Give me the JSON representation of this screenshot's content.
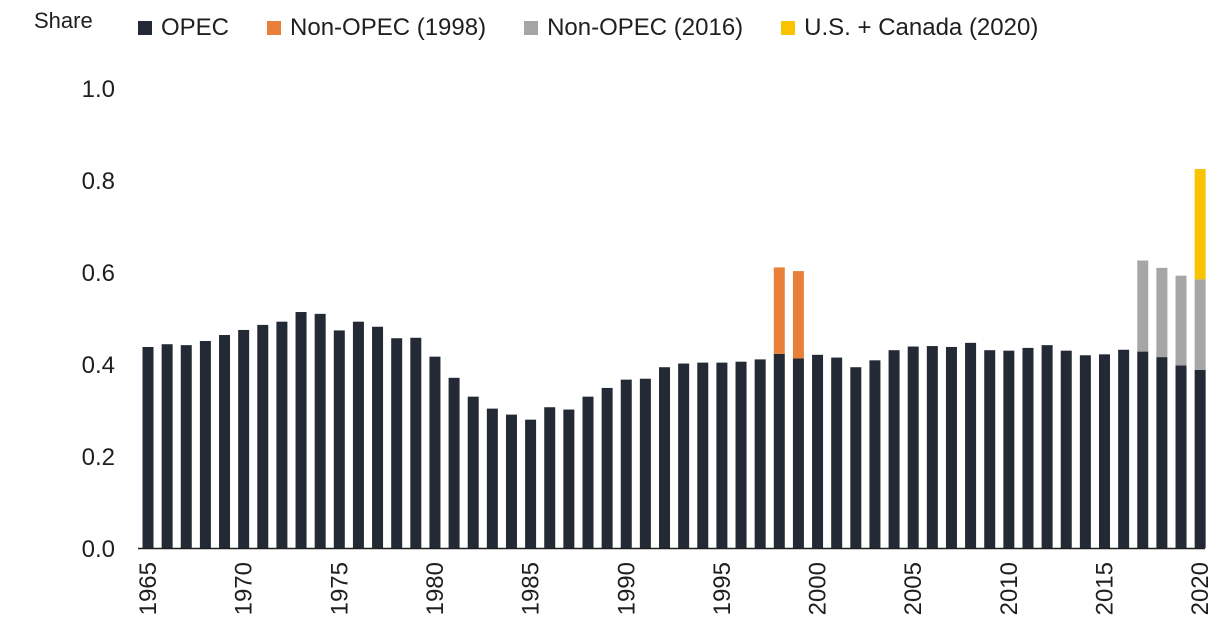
{
  "chart_data": {
    "type": "bar",
    "stacked": true,
    "ylabel": "Share",
    "ylim": [
      0,
      1.0
    ],
    "yticks": [
      "0.0",
      "0.2",
      "0.4",
      "0.6",
      "0.8",
      "1.0"
    ],
    "xticks": [
      "1965",
      "1970",
      "1975",
      "1980",
      "1985",
      "1990",
      "1995",
      "2000",
      "2005",
      "2010",
      "2015",
      "2020"
    ],
    "grid": false,
    "legend_position": "top",
    "categories": [
      1965,
      1966,
      1967,
      1968,
      1969,
      1970,
      1971,
      1972,
      1973,
      1974,
      1975,
      1976,
      1977,
      1978,
      1979,
      1980,
      1981,
      1982,
      1983,
      1984,
      1985,
      1986,
      1987,
      1988,
      1989,
      1990,
      1991,
      1992,
      1993,
      1994,
      1995,
      1996,
      1997,
      1998,
      1999,
      2000,
      2001,
      2002,
      2003,
      2004,
      2005,
      2006,
      2007,
      2008,
      2009,
      2010,
      2011,
      2012,
      2013,
      2014,
      2015,
      2016,
      2017,
      2018,
      2019,
      2020
    ],
    "series": [
      {
        "name": "OPEC",
        "color": "#232a35",
        "values": [
          0.437,
          0.443,
          0.441,
          0.45,
          0.463,
          0.474,
          0.485,
          0.492,
          0.513,
          0.509,
          0.473,
          0.492,
          0.481,
          0.456,
          0.457,
          0.416,
          0.37,
          0.329,
          0.303,
          0.29,
          0.279,
          0.306,
          0.301,
          0.329,
          0.348,
          0.366,
          0.368,
          0.393,
          0.401,
          0.403,
          0.403,
          0.405,
          0.41,
          0.422,
          0.412,
          0.42,
          0.414,
          0.393,
          0.408,
          0.43,
          0.438,
          0.439,
          0.437,
          0.446,
          0.43,
          0.429,
          0.435,
          0.441,
          0.429,
          0.419,
          0.421,
          0.431,
          0.427,
          0.415,
          0.397,
          0.387
        ]
      },
      {
        "name": "Non-OPEC (1998)",
        "color": "#e8803a",
        "values": [
          0,
          0,
          0,
          0,
          0,
          0,
          0,
          0,
          0,
          0,
          0,
          0,
          0,
          0,
          0,
          0,
          0,
          0,
          0,
          0,
          0,
          0,
          0,
          0,
          0,
          0,
          0,
          0,
          0,
          0,
          0,
          0,
          0,
          0.188,
          0.19,
          0,
          0,
          0,
          0,
          0,
          0,
          0,
          0,
          0,
          0,
          0,
          0,
          0,
          0,
          0,
          0,
          0,
          0,
          0,
          0,
          0
        ]
      },
      {
        "name": "Non-OPEC (2016)",
        "color": "#a6a6a6",
        "values": [
          0,
          0,
          0,
          0,
          0,
          0,
          0,
          0,
          0,
          0,
          0,
          0,
          0,
          0,
          0,
          0,
          0,
          0,
          0,
          0,
          0,
          0,
          0,
          0,
          0,
          0,
          0,
          0,
          0,
          0,
          0,
          0,
          0,
          0,
          0,
          0,
          0,
          0,
          0,
          0,
          0,
          0,
          0,
          0,
          0,
          0,
          0,
          0,
          0,
          0,
          0,
          0,
          0.198,
          0.194,
          0.195,
          0.197
        ]
      },
      {
        "name": "U.S. + Canada (2020)",
        "color": "#f9c300",
        "values": [
          0,
          0,
          0,
          0,
          0,
          0,
          0,
          0,
          0,
          0,
          0,
          0,
          0,
          0,
          0,
          0,
          0,
          0,
          0,
          0,
          0,
          0,
          0,
          0,
          0,
          0,
          0,
          0,
          0,
          0,
          0,
          0,
          0,
          0,
          0,
          0,
          0,
          0,
          0,
          0,
          0,
          0,
          0,
          0,
          0,
          0,
          0,
          0,
          0,
          0,
          0,
          0,
          0,
          0,
          0,
          0.24
        ]
      }
    ]
  }
}
